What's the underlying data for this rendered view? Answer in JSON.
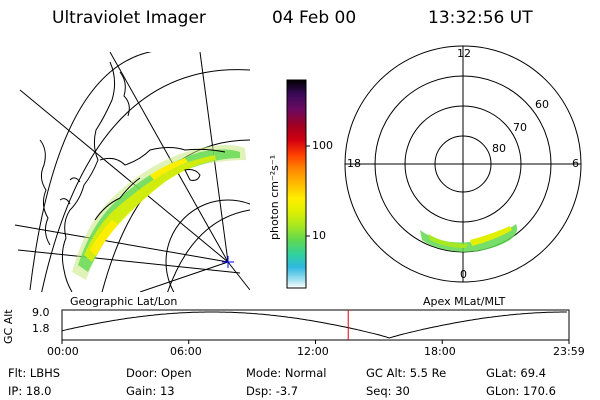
{
  "header": {
    "instrument": "Ultraviolet Imager",
    "date": "04 Feb 00",
    "time": "13:32:56 UT"
  },
  "colorbar": {
    "unit_label": "photon cm⁻²s⁻¹",
    "tick_labels": [
      "100",
      "10"
    ],
    "colors": [
      "#000000",
      "#3a0a5a",
      "#6a0a60",
      "#a00020",
      "#d40010",
      "#ff4000",
      "#ff8800",
      "#ffbb00",
      "#ffee00",
      "#e0f000",
      "#a8e820",
      "#60d850",
      "#30d0a0",
      "#30b8e0",
      "#a0e0f0",
      "#ffffff"
    ]
  },
  "geo_panel": {
    "caption": "Geographic Lat/Lon"
  },
  "polar_panel": {
    "caption": "Apex MLat/MLT",
    "mlt_labels": {
      "top": "12",
      "bottom": "0",
      "left": "18",
      "right": "6"
    },
    "lat_labels": [
      "60",
      "70",
      "80"
    ]
  },
  "altitude_plot": {
    "ylabel": "GC Alt",
    "yticks": [
      "9.0",
      "1.8"
    ],
    "xticks": [
      "00:00",
      "06:00",
      "12:00",
      "18:00",
      "23:59"
    ],
    "marker_time_hours": 13.549,
    "marker_color": "#e00000"
  },
  "status": {
    "row1": [
      {
        "label": "Flt:",
        "value": "LBHS"
      },
      {
        "label": "Door:",
        "value": "Open"
      },
      {
        "label": "Mode:",
        "value": "Normal"
      },
      {
        "label": "GC Alt:",
        "value": "5.5 Re"
      },
      {
        "label": "GLat:",
        "value": "69.4"
      }
    ],
    "row2": [
      {
        "label": "IP:",
        "value": "18.0"
      },
      {
        "label": "Gain:",
        "value": "13"
      },
      {
        "label": "Dsp:",
        "value": "-3.7"
      },
      {
        "label": "Seq:",
        "value": "30"
      },
      {
        "label": "GLon:",
        "value": "170.6"
      }
    ]
  }
}
